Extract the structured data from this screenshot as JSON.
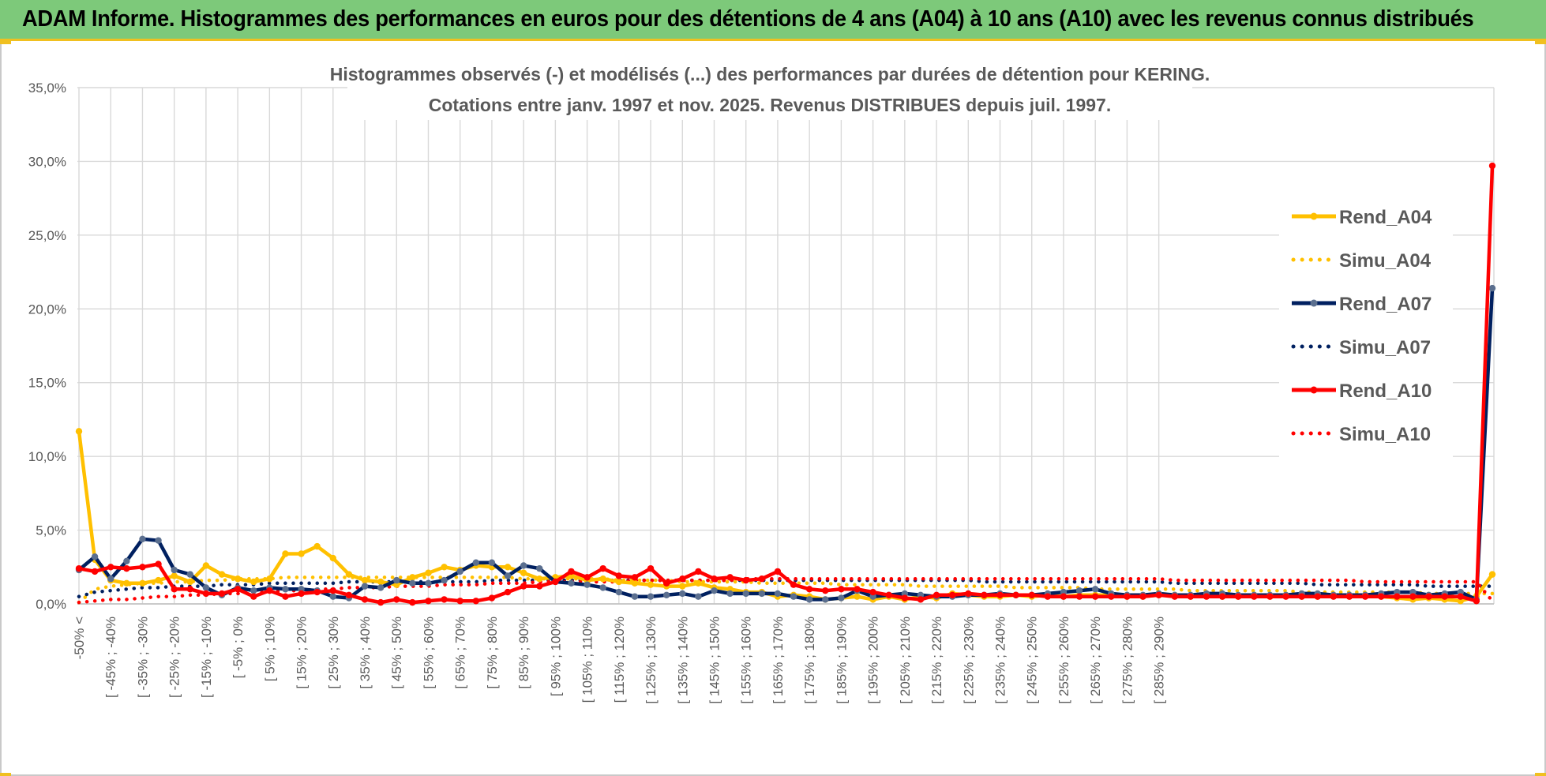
{
  "banner": {
    "title": "ADAM Informe. Histogrammes des performances en euros pour des détentions de 4 ans (A04) à 10 ans (A10) avec les revenus connus distribués"
  },
  "colors": {
    "A04": "#ffc000",
    "A07": "#002060",
    "A07_marker": "#5b6f8f",
    "A10": "#ff0000",
    "banner_bg": "#7dc97a",
    "banner_border": "#f0c020",
    "grid": "#d9d9d9"
  },
  "chart_data": {
    "type": "line",
    "title": "Histogrammes observés (-) et modélisés (...) des performances par durées de détention pour KERING.",
    "subtitle": "Cotations entre janv. 1997 et nov. 2025. Revenus DISTRIBUES depuis juil. 1997.",
    "ylim": [
      0,
      35
    ],
    "y_ticks": [
      "0,0%",
      "5,0%",
      "10,0%",
      "15,0%",
      "20,0%",
      "25,0%",
      "30,0%",
      "35,0%"
    ],
    "x_tick_labels": [
      "-50% <",
      "[ -45% ; -40%",
      "[ -35% ; -30%",
      "[ -25% ; -20%",
      "[ -15% ; -10%",
      "[ -5% ; 0%",
      "[ 5% ; 10%",
      "[ 15% ; 20%",
      "[ 25% ; 30%",
      "[ 35% ; 40%",
      "[ 45% ; 50%",
      "[ 55% ; 60%",
      "[ 65% ; 70%",
      "[ 75% ; 80%",
      "[ 85% ; 90%",
      "[ 95% ; 100%",
      "[ 105% ; 110%",
      "[ 115% ; 120%",
      "[ 125% ; 130%",
      "[ 135% ; 140%",
      "[ 145% ; 150%",
      "[ 155% ; 160%",
      "[ 165% ; 170%",
      "[ 175% ; 180%",
      "[ 185% ; 190%",
      "[ 195% ; 200%",
      "[ 205% ; 210%",
      "[ 215% ; 220%",
      "[ 225% ; 230%",
      "[ 235% ; 240%",
      "[ 245% ; 250%",
      "[ 255% ; 260%",
      "[ 265% ; 270%",
      "[ 275% ; 280%",
      "[ 285% ; 290%"
    ],
    "legend_position": "right",
    "grid": true,
    "series": [
      {
        "name": "Rend_A04",
        "style": "solid",
        "color": "#ffc000",
        "values": [
          11.7,
          3.0,
          1.6,
          1.4,
          1.4,
          1.6,
          1.9,
          1.5,
          2.6,
          2.0,
          1.7,
          1.5,
          1.7,
          3.4,
          3.4,
          3.9,
          3.1,
          2.0,
          1.6,
          1.5,
          1.3,
          1.8,
          2.1,
          2.5,
          2.3,
          2.6,
          2.5,
          2.5,
          2.1,
          1.7,
          1.8,
          1.9,
          1.6,
          1.7,
          1.5,
          1.4,
          1.3,
          1.2,
          1.2,
          1.4,
          1.1,
          1.0,
          0.8,
          0.8,
          0.5,
          0.6,
          0.5,
          0.3,
          0.4,
          0.5,
          0.3,
          0.5,
          0.3,
          0.5,
          0.4,
          0.7,
          0.6,
          0.5,
          0.5,
          0.6,
          0.5,
          0.6,
          0.5,
          0.6,
          0.6,
          0.6,
          0.5,
          0.5,
          0.6,
          0.6,
          0.5,
          0.6,
          0.5,
          0.5,
          0.6,
          0.5,
          0.6,
          0.5,
          0.5,
          0.6,
          0.5,
          0.6,
          0.5,
          0.4,
          0.3,
          0.4,
          0.3,
          0.2,
          0.5,
          2.0
        ]
      },
      {
        "name": "Simu_A04",
        "style": "dotted",
        "color": "#ffc000",
        "values": [
          0.1,
          1.0,
          1.2,
          1.3,
          1.4,
          1.4,
          1.5,
          1.5,
          1.6,
          1.6,
          1.7,
          1.7,
          1.7,
          1.8,
          1.8,
          1.8,
          1.8,
          1.8,
          1.8,
          1.8,
          1.8,
          1.8,
          1.8,
          1.8,
          1.8,
          1.8,
          1.8,
          1.8,
          1.7,
          1.7,
          1.7,
          1.7,
          1.7,
          1.7,
          1.6,
          1.6,
          1.6,
          1.6,
          1.5,
          1.5,
          1.5,
          1.5,
          1.5,
          1.4,
          1.4,
          1.4,
          1.4,
          1.4,
          1.3,
          1.3,
          1.3,
          1.3,
          1.3,
          1.2,
          1.2,
          1.2,
          1.2,
          1.2,
          1.2,
          1.1,
          1.1,
          1.1,
          1.1,
          1.1,
          1.0,
          1.0,
          1.0,
          1.0,
          1.0,
          1.0,
          0.9,
          0.9,
          0.9,
          0.9,
          0.9,
          0.9,
          0.9,
          0.8,
          0.8,
          0.8,
          0.8,
          0.8,
          0.8,
          0.8,
          0.8,
          0.7,
          0.7,
          0.7,
          0.7,
          0.7
        ]
      },
      {
        "name": "Rend_A07",
        "style": "solid",
        "color": "#002060",
        "values": [
          2.3,
          3.2,
          1.7,
          2.9,
          4.4,
          4.3,
          2.3,
          2.0,
          1.1,
          0.6,
          1.1,
          0.9,
          1.1,
          1.0,
          1.0,
          0.9,
          0.5,
          0.4,
          1.2,
          1.1,
          1.6,
          1.4,
          1.4,
          1.6,
          2.2,
          2.8,
          2.8,
          1.9,
          2.6,
          2.4,
          1.5,
          1.4,
          1.3,
          1.1,
          0.8,
          0.5,
          0.5,
          0.6,
          0.7,
          0.5,
          0.9,
          0.7,
          0.7,
          0.7,
          0.7,
          0.5,
          0.3,
          0.3,
          0.4,
          0.9,
          0.5,
          0.6,
          0.7,
          0.6,
          0.5,
          0.5,
          0.6,
          0.6,
          0.7,
          0.6,
          0.6,
          0.7,
          0.8,
          0.9,
          1.0,
          0.7,
          0.6,
          0.6,
          0.7,
          0.6,
          0.6,
          0.7,
          0.7,
          0.6,
          0.6,
          0.6,
          0.6,
          0.7,
          0.7,
          0.6,
          0.6,
          0.6,
          0.7,
          0.8,
          0.8,
          0.6,
          0.7,
          0.8,
          0.3,
          21.4
        ]
      },
      {
        "name": "Simu_A07",
        "style": "dotted",
        "color": "#002060",
        "values": [
          0.5,
          0.8,
          0.9,
          1.0,
          1.1,
          1.1,
          1.2,
          1.2,
          1.2,
          1.3,
          1.3,
          1.3,
          1.4,
          1.4,
          1.4,
          1.4,
          1.4,
          1.5,
          1.5,
          1.5,
          1.5,
          1.5,
          1.5,
          1.5,
          1.5,
          1.5,
          1.6,
          1.6,
          1.6,
          1.6,
          1.6,
          1.6,
          1.6,
          1.6,
          1.6,
          1.6,
          1.6,
          1.6,
          1.6,
          1.6,
          1.6,
          1.6,
          1.6,
          1.6,
          1.6,
          1.6,
          1.6,
          1.6,
          1.6,
          1.6,
          1.6,
          1.6,
          1.6,
          1.6,
          1.6,
          1.6,
          1.6,
          1.5,
          1.5,
          1.5,
          1.5,
          1.5,
          1.5,
          1.5,
          1.5,
          1.5,
          1.5,
          1.5,
          1.5,
          1.4,
          1.4,
          1.4,
          1.4,
          1.4,
          1.4,
          1.4,
          1.4,
          1.4,
          1.3,
          1.3,
          1.3,
          1.3,
          1.3,
          1.3,
          1.3,
          1.2,
          1.2,
          1.2,
          1.2,
          1.2
        ]
      },
      {
        "name": "Rend_A10",
        "style": "solid",
        "color": "#ff0000",
        "values": [
          2.4,
          2.2,
          2.5,
          2.4,
          2.5,
          2.7,
          1.0,
          1.0,
          0.7,
          0.7,
          1.0,
          0.5,
          0.9,
          0.5,
          0.7,
          0.8,
          0.9,
          0.6,
          0.3,
          0.1,
          0.3,
          0.1,
          0.2,
          0.3,
          0.2,
          0.2,
          0.4,
          0.8,
          1.2,
          1.2,
          1.5,
          2.2,
          1.8,
          2.4,
          1.9,
          1.8,
          2.4,
          1.4,
          1.7,
          2.2,
          1.7,
          1.8,
          1.6,
          1.7,
          2.2,
          1.3,
          1.0,
          0.9,
          1.0,
          1.0,
          0.8,
          0.6,
          0.4,
          0.3,
          0.6,
          0.6,
          0.7,
          0.6,
          0.6,
          0.6,
          0.6,
          0.5,
          0.5,
          0.5,
          0.5,
          0.5,
          0.5,
          0.5,
          0.6,
          0.5,
          0.5,
          0.5,
          0.5,
          0.5,
          0.5,
          0.5,
          0.5,
          0.5,
          0.5,
          0.5,
          0.5,
          0.5,
          0.5,
          0.5,
          0.5,
          0.5,
          0.5,
          0.5,
          0.2,
          29.7
        ]
      },
      {
        "name": "Simu_A10",
        "style": "dotted",
        "color": "#ff0000",
        "values": [
          0.1,
          0.2,
          0.3,
          0.3,
          0.4,
          0.5,
          0.5,
          0.6,
          0.6,
          0.7,
          0.7,
          0.8,
          0.8,
          0.9,
          0.9,
          1.0,
          1.0,
          1.1,
          1.1,
          1.1,
          1.2,
          1.2,
          1.2,
          1.3,
          1.3,
          1.3,
          1.4,
          1.4,
          1.4,
          1.5,
          1.5,
          1.5,
          1.5,
          1.5,
          1.5,
          1.6,
          1.6,
          1.6,
          1.6,
          1.6,
          1.6,
          1.6,
          1.7,
          1.7,
          1.7,
          1.7,
          1.7,
          1.7,
          1.7,
          1.7,
          1.7,
          1.7,
          1.7,
          1.7,
          1.7,
          1.7,
          1.7,
          1.7,
          1.7,
          1.7,
          1.7,
          1.7,
          1.7,
          1.7,
          1.7,
          1.7,
          1.7,
          1.7,
          1.7,
          1.6,
          1.6,
          1.6,
          1.6,
          1.6,
          1.6,
          1.6,
          1.6,
          1.6,
          1.6,
          1.6,
          1.6,
          1.5,
          1.5,
          1.5,
          1.5,
          1.5,
          1.5,
          1.5,
          1.5,
          0.2
        ]
      }
    ]
  }
}
